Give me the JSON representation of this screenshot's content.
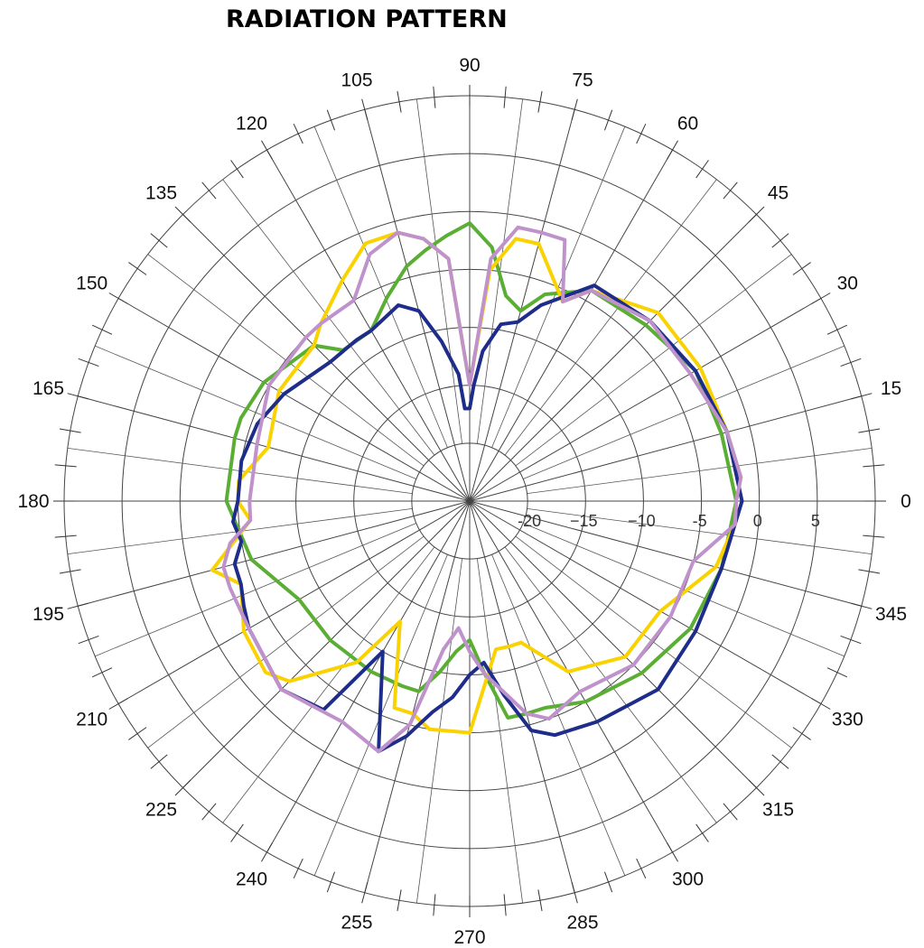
{
  "chart_data": {
    "type": "polar-line",
    "title": "RADIATION PATTERN",
    "angle_ticks": [
      "0",
      "15",
      "30",
      "45",
      "60",
      "75",
      "90",
      "105",
      "120",
      "135",
      "150",
      "165",
      "180",
      "195",
      "210",
      "225",
      "240",
      "255",
      "270",
      "285",
      "300",
      "315",
      "330",
      "345"
    ],
    "radial_ticks": [
      "-20",
      "−15",
      "−10",
      "-5",
      "0",
      "5"
    ],
    "r_range": [
      -25,
      10
    ],
    "grid": true,
    "legend": "none",
    "series": [
      {
        "color": "#5aae34",
        "theta": [
          0,
          15,
          30,
          45,
          60,
          70,
          75,
          80,
          85,
          90,
          95,
          100,
          105,
          112,
          120,
          130,
          135,
          150,
          160,
          165,
          180,
          195,
          210,
          225,
          240,
          250,
          255,
          260,
          265,
          270,
          275,
          280,
          285,
          290,
          300,
          315,
          330,
          345
        ],
        "r": [
          -2,
          -2.5,
          -2.5,
          -3.5,
          -4,
          -6,
          -8,
          -7,
          -3,
          -1,
          -2,
          -3,
          -4,
          -6,
          -8,
          -8,
          -6,
          -4.5,
          -4,
          -4,
          -4,
          -5.5,
          -8,
          -8,
          -8,
          -8,
          -8,
          -10,
          -12,
          -13,
          -10,
          -6,
          -6,
          -6,
          -5,
          -4,
          -3,
          -2.5
        ]
      },
      {
        "color": "#f9d200",
        "theta": [
          0,
          5,
          15,
          30,
          45,
          60,
          65,
          75,
          80,
          85,
          90,
          95,
          100,
          105,
          112,
          120,
          130,
          135,
          150,
          165,
          175,
          180,
          185,
          195,
          200,
          210,
          220,
          225,
          235,
          240,
          250,
          255,
          260,
          270,
          280,
          285,
          290,
          300,
          315,
          330,
          345,
          355
        ],
        "r": [
          -2,
          -1.5,
          -2,
          -2,
          -2,
          -4,
          -6,
          -2,
          -2,
          -5,
          -15,
          -4,
          -2,
          -1,
          -1,
          -3,
          -5,
          -6,
          -6,
          -7,
          -5,
          -5,
          -6,
          -2,
          -4,
          -2.5,
          -2,
          -3,
          -8,
          -13,
          -6,
          -6,
          -5,
          -5,
          -12,
          -12,
          -12,
          -8,
          -6,
          -6,
          -3,
          -2
        ]
      },
      {
        "color": "#1e2c8a",
        "theta": [
          0,
          15,
          30,
          45,
          60,
          70,
          75,
          80,
          85,
          88,
          90,
          93,
          95,
          100,
          105,
          110,
          120,
          125,
          135,
          150,
          160,
          170,
          180,
          185,
          190,
          195,
          200,
          205,
          210,
          225,
          235,
          240,
          250,
          255,
          260,
          265,
          270,
          275,
          280,
          285,
          290,
          300,
          315,
          330,
          345
        ],
        "r": [
          -1.5,
          -2,
          -2.5,
          -3,
          -3.5,
          -7,
          -9,
          -9.5,
          -12,
          -15,
          -17,
          -17,
          -14,
          -11,
          -8,
          -7,
          -8,
          -8,
          -8,
          -6.5,
          -5.5,
          -5,
          -5,
          -4.5,
          -5,
          -4,
          -4,
          -3.5,
          -3,
          -2,
          -3,
          -10,
          -2,
          -4,
          -6.5,
          -8,
          -10,
          -11,
          -8,
          -4.5,
          -3.5,
          -3,
          -2,
          -2.5,
          -2.5
        ]
      },
      {
        "color": "#bf92cb",
        "theta": [
          0,
          5,
          15,
          30,
          45,
          60,
          65,
          70,
          75,
          80,
          85,
          90,
          95,
          100,
          105,
          112,
          120,
          130,
          135,
          150,
          165,
          180,
          185,
          190,
          195,
          200,
          210,
          225,
          240,
          250,
          255,
          260,
          265,
          270,
          275,
          285,
          290,
          300,
          315,
          330,
          345,
          355
        ],
        "r": [
          -2,
          -1.5,
          -2,
          -3,
          -3,
          -4,
          -6,
          -1,
          -1,
          -1,
          -4,
          -15,
          -4,
          -2,
          -1,
          -2,
          -5,
          -5,
          -5,
          -5,
          -6,
          -6,
          -6,
          -4,
          -3,
          -3,
          -3,
          -2,
          -3,
          -2,
          -5,
          -12,
          -14,
          -12,
          -10,
          -6,
          -5,
          -6,
          -5,
          -5,
          -5,
          -2
        ]
      }
    ]
  }
}
